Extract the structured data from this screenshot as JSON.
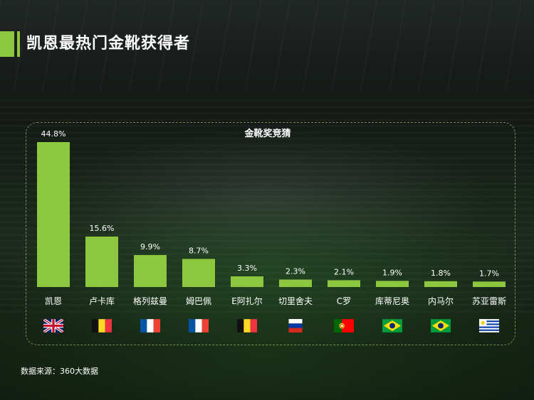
{
  "page": {
    "title": "凯恩最热门金靴获得者",
    "source": "数据来源：360大数据"
  },
  "chart_data": {
    "type": "bar",
    "title": "金靴奖竞猜",
    "categories": [
      "凯恩",
      "卢卡库",
      "格列兹曼",
      "姆巴佩",
      "E阿扎尔",
      "切里舍夫",
      "C罗",
      "库蒂尼奥",
      "内马尔",
      "苏亚雷斯"
    ],
    "values": [
      44.8,
      15.6,
      9.9,
      8.7,
      3.3,
      2.3,
      2.1,
      1.9,
      1.8,
      1.7
    ],
    "value_labels": [
      "44.8%",
      "15.6%",
      "9.9%",
      "8.7%",
      "3.3%",
      "2.3%",
      "2.1%",
      "1.9%",
      "1.8%",
      "1.7%"
    ],
    "flags": [
      "uk-flag",
      "belgium-flag",
      "france-flag",
      "france-flag",
      "belgium-flag",
      "russia-flag",
      "portugal-flag",
      "brazil-flag",
      "brazil-flag",
      "uruguay-flag"
    ],
    "bar_color": "#8dc63f",
    "grid": false
  }
}
